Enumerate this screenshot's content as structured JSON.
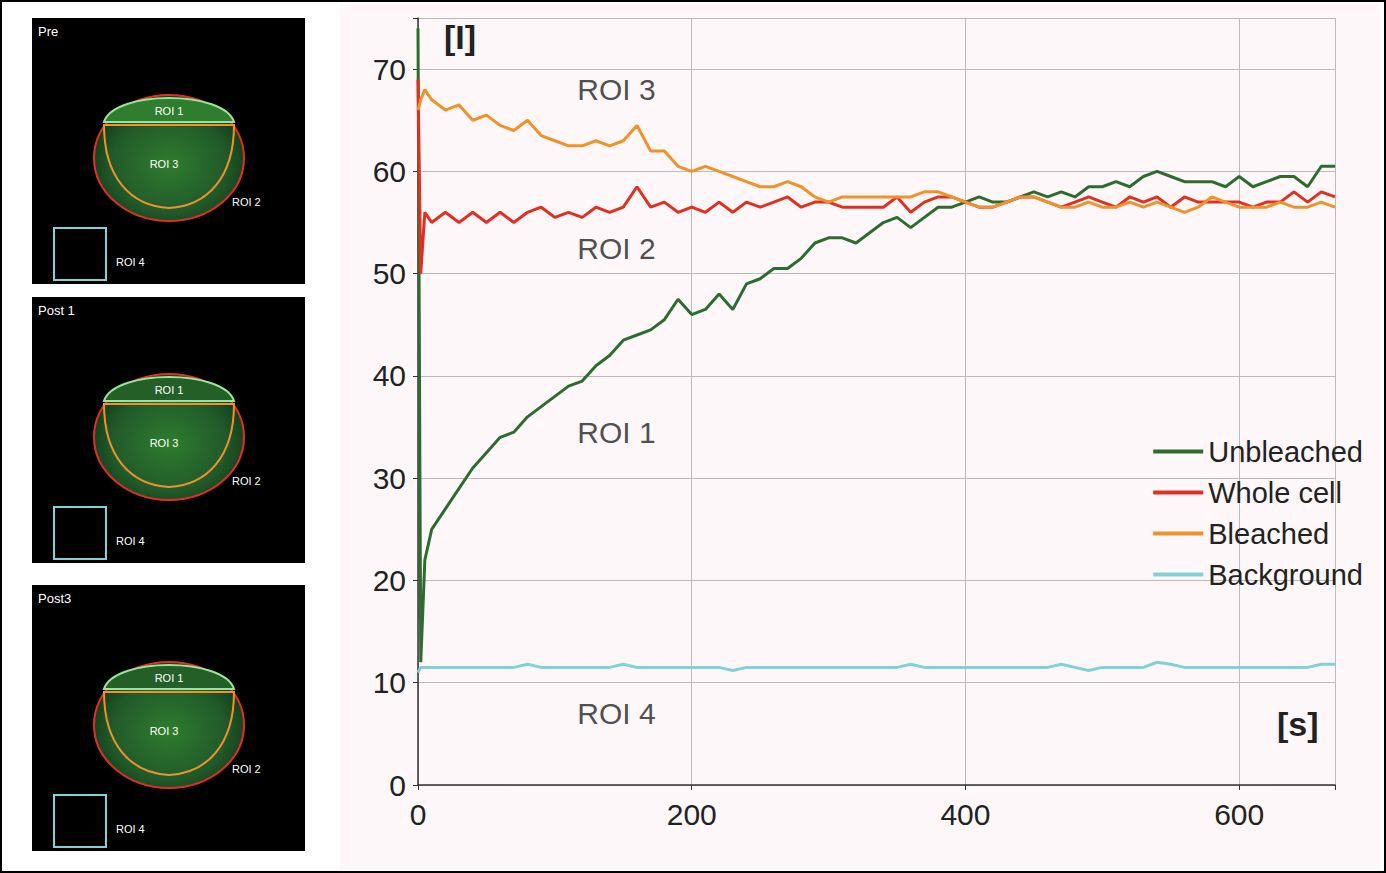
{
  "chart_data": {
    "type": "line",
    "xlabel": "[s]",
    "ylabel": "[I]",
    "x": [
      0,
      2,
      5,
      10,
      20,
      30,
      40,
      50,
      60,
      70,
      80,
      90,
      100,
      110,
      120,
      130,
      140,
      150,
      160,
      170,
      180,
      190,
      200,
      210,
      220,
      230,
      240,
      250,
      260,
      270,
      280,
      290,
      300,
      310,
      320,
      330,
      340,
      350,
      360,
      370,
      380,
      390,
      400,
      410,
      420,
      430,
      440,
      450,
      460,
      470,
      480,
      490,
      500,
      510,
      520,
      530,
      540,
      550,
      560,
      570,
      580,
      590,
      600,
      610,
      620,
      630,
      640,
      650,
      660,
      670
    ],
    "xlim": [
      0,
      670
    ],
    "xticks": [
      0,
      200,
      400,
      600
    ],
    "ylim": [
      0,
      75
    ],
    "yticks": [
      0,
      10,
      20,
      30,
      40,
      50,
      60,
      70
    ],
    "grid": true,
    "legend": "right",
    "series": [
      {
        "name": "Unbleached",
        "color": "#2e6b2e",
        "values": [
          74,
          12,
          22,
          25,
          27,
          29,
          31,
          32.5,
          34,
          34.5,
          36,
          37,
          38,
          39,
          39.5,
          41,
          42,
          43.5,
          44,
          44.5,
          45.5,
          47.5,
          46,
          46.5,
          48,
          46.5,
          49,
          49.5,
          50.5,
          50.5,
          51.5,
          53,
          53.5,
          53.5,
          53,
          54,
          55,
          55.5,
          54.5,
          55.5,
          56.5,
          56.5,
          57,
          57.5,
          57,
          57,
          57.5,
          58,
          57.5,
          58,
          57.5,
          58.5,
          58.5,
          59,
          58.5,
          59.5,
          60,
          59.5,
          59,
          59,
          59,
          58.5,
          59.5,
          58.5,
          59,
          59.5,
          59.5,
          58.5,
          60.5,
          60.5
        ]
      },
      {
        "name": "Whole cell",
        "color": "#e03020",
        "values": [
          69,
          50,
          56,
          55,
          56,
          55,
          56,
          55,
          56,
          55,
          56,
          56.5,
          55.5,
          56,
          55.5,
          56.5,
          56,
          56.5,
          58.5,
          56.5,
          57,
          56,
          56.5,
          56,
          57,
          56,
          57,
          56.5,
          57,
          57.5,
          56.5,
          57,
          57,
          56.5,
          56.5,
          56.5,
          56.5,
          57.5,
          56,
          57,
          57.5,
          57.5,
          57,
          56.5,
          56.5,
          57,
          57.5,
          57.5,
          57,
          56.5,
          57,
          57.5,
          57,
          56.5,
          57.5,
          57,
          57.5,
          56.5,
          57.5,
          57,
          57,
          57,
          57,
          56.5,
          57,
          57,
          58,
          57,
          58,
          57.5
        ]
      },
      {
        "name": "Bleached",
        "color": "#f0922a",
        "values": [
          66,
          67,
          68,
          67,
          66,
          66.5,
          65,
          65.5,
          64.5,
          64,
          65,
          63.5,
          63,
          62.5,
          62.5,
          63,
          62.5,
          63,
          64.5,
          62,
          62,
          60.5,
          60,
          60.5,
          60,
          59.5,
          59,
          58.5,
          58.5,
          59,
          58.5,
          57.5,
          57,
          57.5,
          57.5,
          57.5,
          57.5,
          57.5,
          57.5,
          58,
          58,
          57.5,
          57,
          56.5,
          56.5,
          57,
          57.5,
          57.5,
          57,
          56.5,
          56.5,
          57,
          56.5,
          56.5,
          57,
          56.5,
          57,
          56.5,
          56,
          56.5,
          57.5,
          57,
          56.5,
          56.5,
          56.5,
          57,
          56.5,
          56.5,
          57,
          56.5
        ]
      },
      {
        "name": "Background",
        "color": "#7fd3d8",
        "values": [
          11,
          11.5,
          11.5,
          11.5,
          11.5,
          11.5,
          11.5,
          11.5,
          11.5,
          11.5,
          11.8,
          11.5,
          11.5,
          11.5,
          11.5,
          11.5,
          11.5,
          11.8,
          11.5,
          11.5,
          11.5,
          11.5,
          11.5,
          11.5,
          11.5,
          11.2,
          11.5,
          11.5,
          11.5,
          11.5,
          11.5,
          11.5,
          11.5,
          11.5,
          11.5,
          11.5,
          11.5,
          11.5,
          11.8,
          11.5,
          11.5,
          11.5,
          11.5,
          11.5,
          11.5,
          11.5,
          11.5,
          11.5,
          11.5,
          11.8,
          11.5,
          11.2,
          11.5,
          11.5,
          11.5,
          11.5,
          12,
          11.8,
          11.5,
          11.5,
          11.5,
          11.5,
          11.5,
          11.5,
          11.5,
          11.5,
          11.5,
          11.5,
          11.8,
          11.8
        ]
      }
    ],
    "annotations": [
      {
        "text": "ROI 3",
        "x": 145,
        "y": 68
      },
      {
        "text": "ROI 2",
        "x": 145,
        "y": 52.5
      },
      {
        "text": "ROI 1",
        "x": 145,
        "y": 34.5
      },
      {
        "text": "ROI 4",
        "x": 145,
        "y": 7
      }
    ]
  },
  "panels": [
    {
      "title": "Pre",
      "rois": {
        "roi1": "ROI 1",
        "roi3": "ROI 3",
        "roi2": "ROI 2",
        "roi4": "ROI 4"
      }
    },
    {
      "title": "Post 1",
      "rois": {
        "roi1": "ROI 1",
        "roi3": "ROI 3",
        "roi2": "ROI 2",
        "roi4": "ROI 4"
      }
    },
    {
      "title": "Post3",
      "rois": {
        "roi1": "ROI 1",
        "roi3": "ROI 3",
        "roi2": "ROI 2",
        "roi4": "ROI 4"
      }
    }
  ]
}
